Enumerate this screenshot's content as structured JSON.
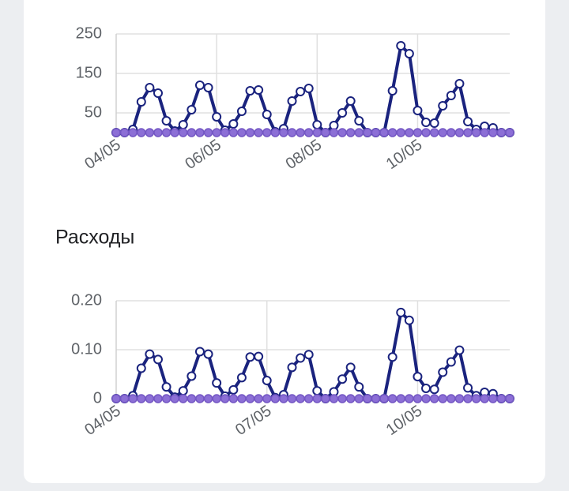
{
  "chart_data": [
    {
      "type": "line",
      "categories": [
        "04/05",
        null,
        null,
        null,
        null,
        null,
        null,
        null,
        null,
        null,
        null,
        null,
        "06/05",
        null,
        null,
        null,
        null,
        null,
        null,
        null,
        null,
        null,
        null,
        null,
        "08/05",
        null,
        null,
        null,
        null,
        null,
        null,
        null,
        null,
        null,
        null,
        null,
        "10/05",
        null,
        null,
        null,
        null,
        null,
        null,
        null,
        null,
        null,
        null,
        null
      ],
      "series": [
        {
          "color": "#1a237e",
          "values": [
            0,
            0,
            8,
            78,
            114,
            100,
            30,
            4,
            20,
            58,
            120,
            114,
            40,
            6,
            22,
            54,
            106,
            108,
            46,
            2,
            10,
            80,
            104,
            112,
            20,
            0,
            18,
            50,
            80,
            30,
            0,
            0,
            0,
            106,
            220,
            200,
            56,
            26,
            24,
            68,
            94,
            124,
            28,
            8,
            16,
            12,
            0,
            0
          ]
        },
        {
          "color": "#8c6fd6",
          "values": [
            0,
            0,
            0,
            0,
            0,
            0,
            0,
            0,
            0,
            0,
            0,
            0,
            0,
            0,
            0,
            0,
            0,
            0,
            0,
            0,
            0,
            0,
            0,
            0,
            0,
            0,
            0,
            0,
            0,
            0,
            0,
            0,
            0,
            0,
            0,
            0,
            0,
            0,
            0,
            0,
            0,
            0,
            0,
            0,
            0,
            0,
            0,
            0
          ]
        }
      ],
      "ylim": [
        0,
        250
      ],
      "yticks": [
        50,
        150,
        250
      ],
      "grid": true
    },
    {
      "type": "line",
      "title": "Расходы",
      "categories": [
        "04/05",
        null,
        null,
        null,
        null,
        null,
        null,
        null,
        null,
        null,
        null,
        null,
        null,
        null,
        null,
        null,
        null,
        null,
        "07/05",
        null,
        null,
        null,
        null,
        null,
        null,
        null,
        null,
        null,
        null,
        null,
        null,
        null,
        null,
        null,
        null,
        null,
        "10/05",
        null,
        null,
        null,
        null,
        null,
        null,
        null,
        null,
        null,
        null,
        null
      ],
      "series": [
        {
          "color": "#1a237e",
          "values": [
            0,
            0,
            0.006,
            0.062,
            0.091,
            0.08,
            0.024,
            0.003,
            0.016,
            0.046,
            0.096,
            0.091,
            0.032,
            0.005,
            0.018,
            0.043,
            0.085,
            0.086,
            0.037,
            0.002,
            0.008,
            0.064,
            0.083,
            0.09,
            0.016,
            0,
            0.014,
            0.04,
            0.064,
            0.024,
            0,
            0,
            0,
            0.085,
            0.176,
            0.16,
            0.045,
            0.021,
            0.019,
            0.054,
            0.075,
            0.099,
            0.022,
            0.006,
            0.013,
            0.01,
            0,
            0
          ]
        },
        {
          "color": "#8c6fd6",
          "values": [
            0,
            0,
            0,
            0,
            0,
            0,
            0,
            0,
            0,
            0,
            0,
            0,
            0,
            0,
            0,
            0,
            0,
            0,
            0,
            0,
            0,
            0,
            0,
            0,
            0,
            0,
            0,
            0,
            0,
            0,
            0,
            0,
            0,
            0,
            0,
            0,
            0,
            0,
            0,
            0,
            0,
            0,
            0,
            0,
            0,
            0,
            0,
            0
          ]
        }
      ],
      "ylim": [
        0,
        0.2
      ],
      "yticks": [
        0,
        {
          "value": 0.1,
          "label": "0.10"
        },
        {
          "value": 0.2,
          "label": "0.20"
        }
      ],
      "grid": true
    }
  ]
}
